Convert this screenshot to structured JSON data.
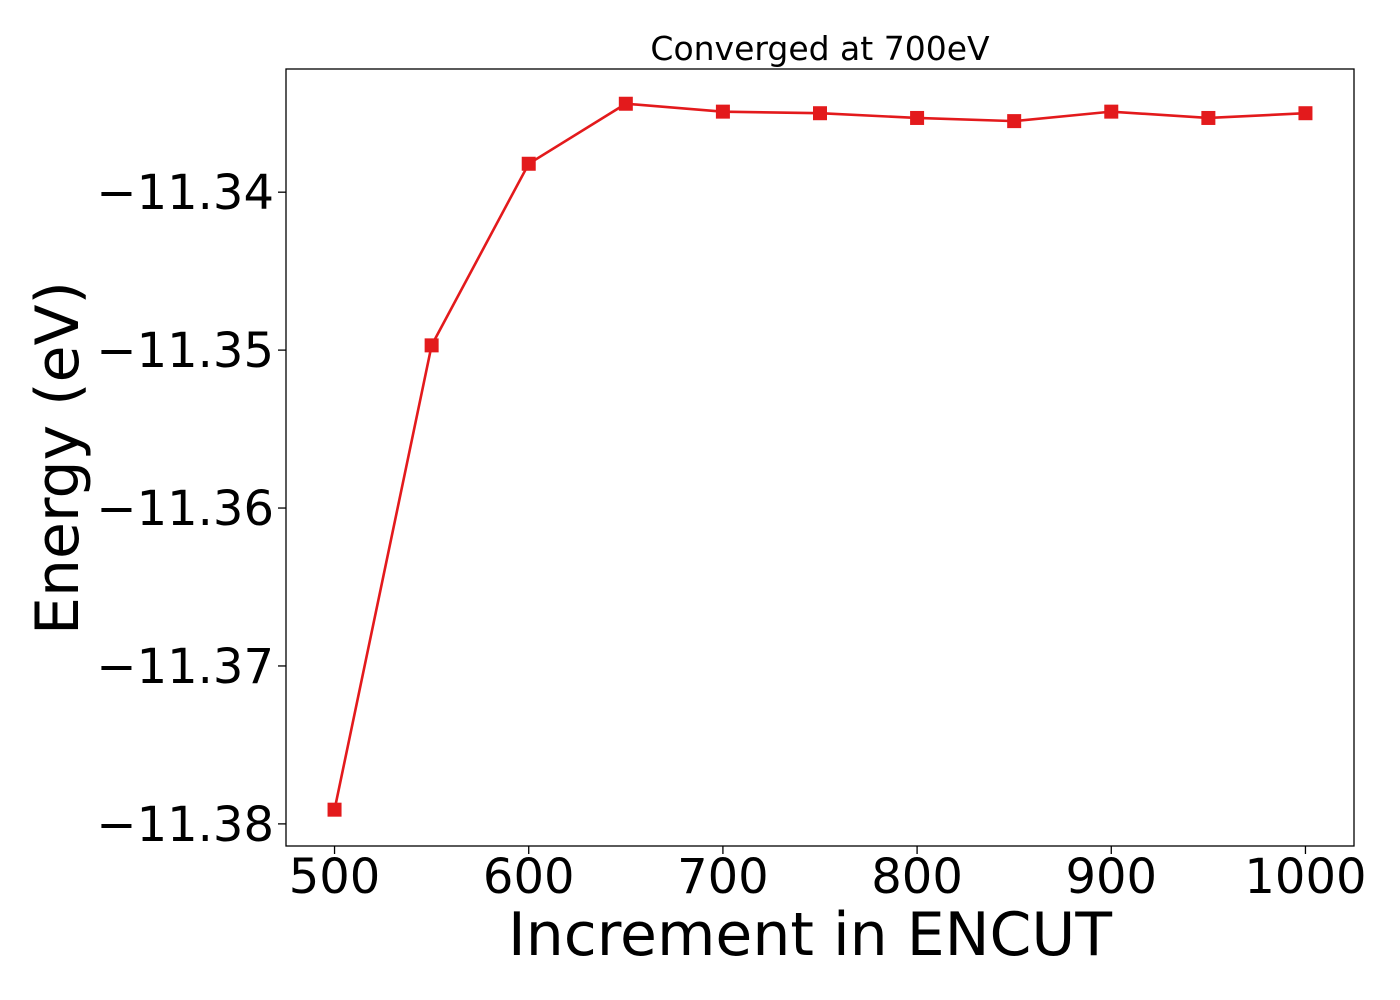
{
  "chart_data": {
    "type": "line",
    "title": "Converged at 700eV",
    "xlabel": "Increment in ENCUT",
    "ylabel": "Energy (eV)",
    "xlim": [
      475,
      1025
    ],
    "ylim": [
      -11.3814,
      -11.3322
    ],
    "x_ticks": [
      500,
      600,
      700,
      800,
      900,
      1000
    ],
    "x_tick_labels": [
      "500",
      "600",
      "700",
      "800",
      "900",
      "1000"
    ],
    "y_ticks": [
      -11.34,
      -11.35,
      -11.36,
      -11.37,
      -11.38
    ],
    "y_tick_labels": [
      "−11.34",
      "−11.35",
      "−11.36",
      "−11.37",
      "−11.38"
    ],
    "grid": false,
    "series": [
      {
        "color": "#e31a1c",
        "marker": "square",
        "points": [
          {
            "x": 500,
            "y": -11.3791
          },
          {
            "x": 550,
            "y": -11.3497
          },
          {
            "x": 600,
            "y": -11.3382
          },
          {
            "x": 650,
            "y": -11.3344
          },
          {
            "x": 700,
            "y": -11.3349
          },
          {
            "x": 750,
            "y": -11.335
          },
          {
            "x": 800,
            "y": -11.3353
          },
          {
            "x": 850,
            "y": -11.3355
          },
          {
            "x": 900,
            "y": -11.3349
          },
          {
            "x": 950,
            "y": -11.3353
          },
          {
            "x": 1000,
            "y": -11.335
          }
        ]
      }
    ]
  }
}
